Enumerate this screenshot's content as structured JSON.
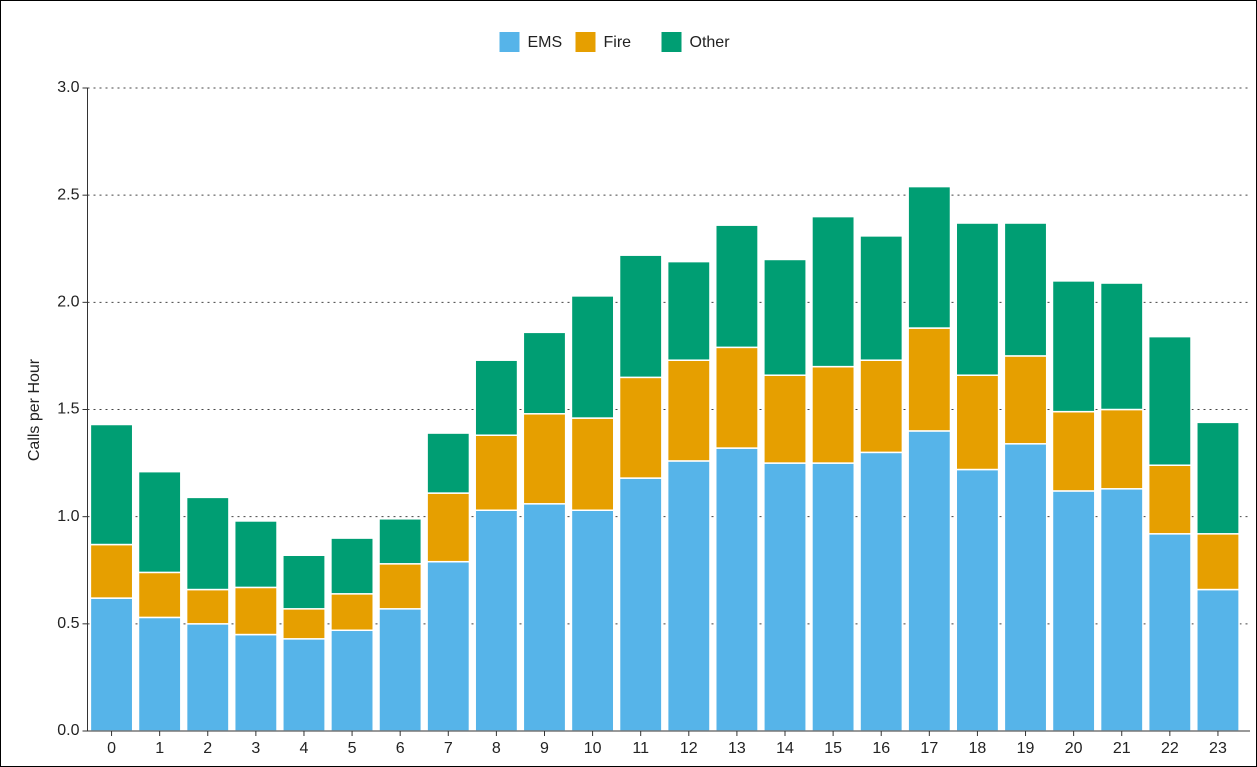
{
  "chart_data": {
    "type": "stacked_bar",
    "y_label": "Calls per Hour",
    "categories": [
      "0",
      "1",
      "2",
      "3",
      "4",
      "5",
      "6",
      "7",
      "8",
      "9",
      "10",
      "11",
      "12",
      "13",
      "14",
      "15",
      "16",
      "17",
      "18",
      "19",
      "20",
      "21",
      "22",
      "23"
    ],
    "series": [
      {
        "name": "EMS",
        "color": "#56B4E9",
        "values": [
          0.62,
          0.53,
          0.5,
          0.45,
          0.43,
          0.47,
          0.57,
          0.79,
          1.03,
          1.06,
          1.03,
          1.18,
          1.26,
          1.32,
          1.25,
          1.25,
          1.3,
          1.4,
          1.22,
          1.34,
          1.12,
          1.13,
          0.92,
          0.66
        ]
      },
      {
        "name": "Fire",
        "color": "#E69F00",
        "values": [
          0.25,
          0.21,
          0.16,
          0.22,
          0.14,
          0.17,
          0.21,
          0.32,
          0.35,
          0.42,
          0.43,
          0.47,
          0.47,
          0.47,
          0.41,
          0.45,
          0.43,
          0.48,
          0.44,
          0.41,
          0.37,
          0.37,
          0.32,
          0.26
        ]
      },
      {
        "name": "Other",
        "color": "#009E73",
        "values": [
          0.56,
          0.47,
          0.43,
          0.31,
          0.25,
          0.26,
          0.21,
          0.28,
          0.35,
          0.38,
          0.57,
          0.57,
          0.46,
          0.57,
          0.54,
          0.7,
          0.58,
          0.66,
          0.71,
          0.62,
          0.61,
          0.59,
          0.6,
          0.52
        ]
      }
    ],
    "ylim": [
      0,
      3
    ],
    "yticks": [
      {
        "value": 0,
        "label": "0.0"
      },
      0.5,
      {
        "value": 1,
        "label": "1.0"
      },
      1.5,
      {
        "value": 2,
        "label": "2.0"
      },
      2.5,
      {
        "value": 3,
        "label": "3.0"
      }
    ],
    "grid": true,
    "legend": "top"
  }
}
